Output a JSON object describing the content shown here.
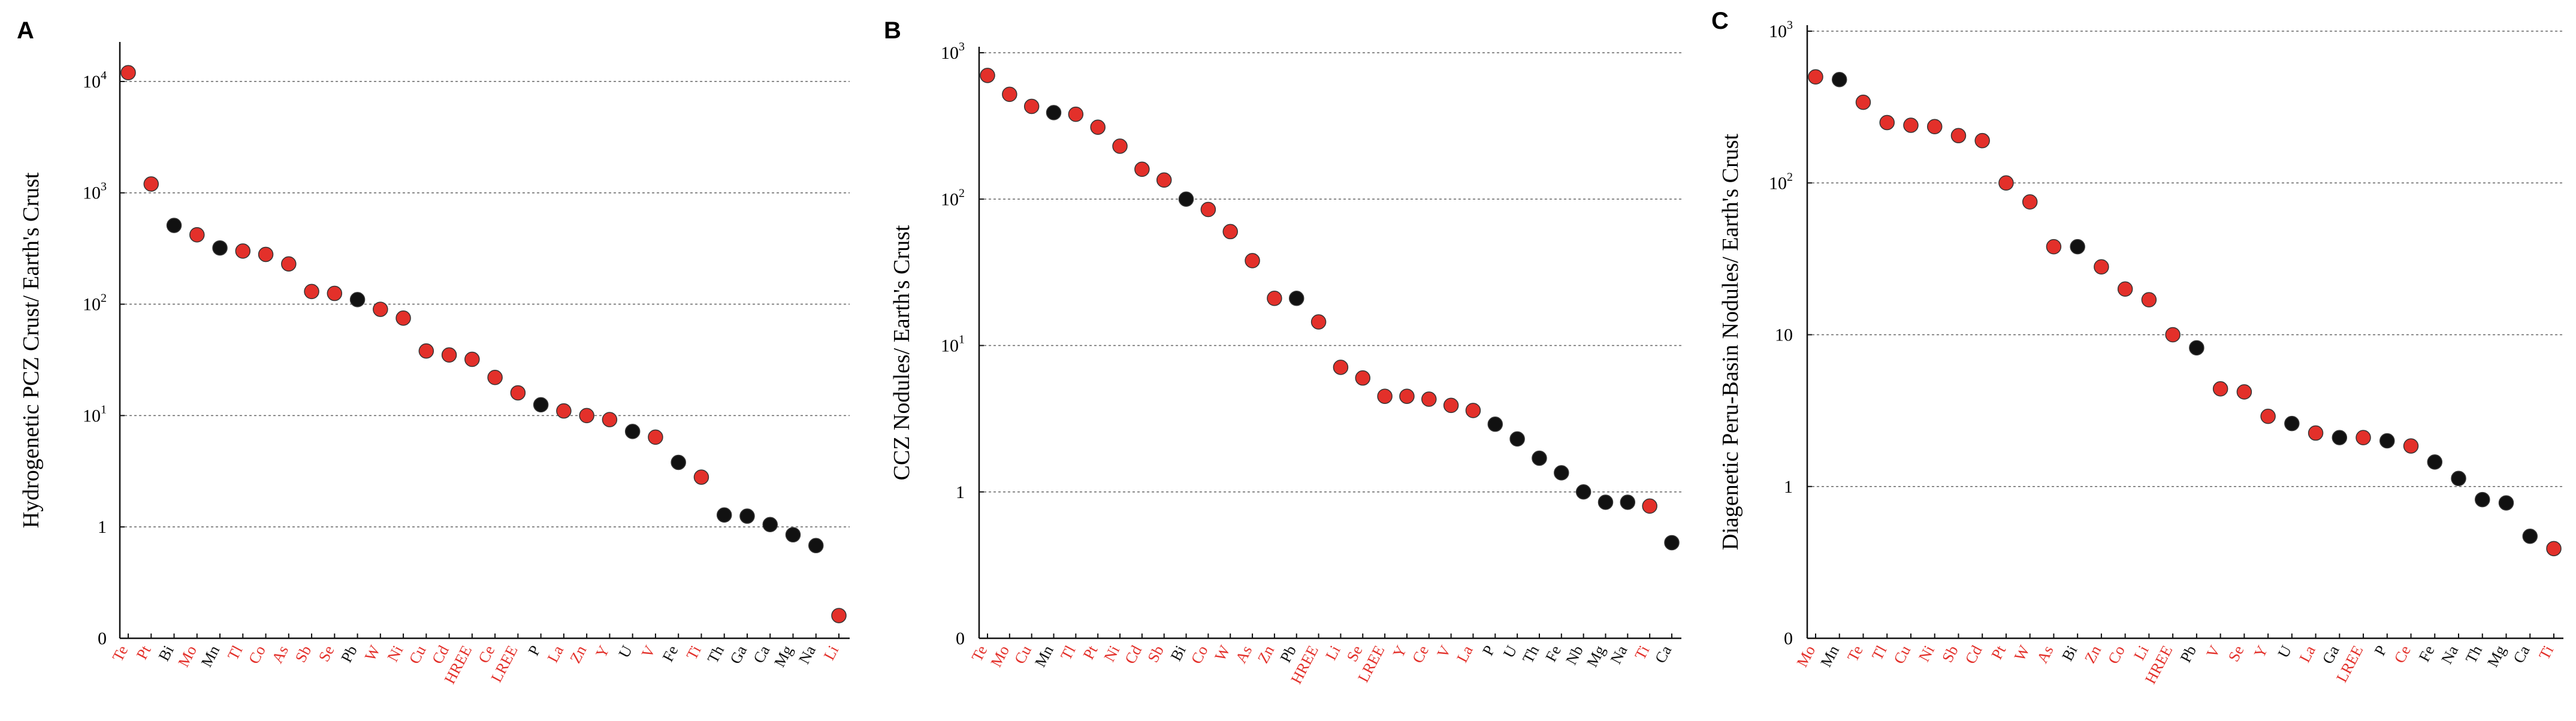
{
  "colors": {
    "red": "#e3302a",
    "black": "#111111",
    "grid": "#666666",
    "axis": "#111111"
  },
  "chart_data": [
    {
      "panel": "A",
      "type": "scatter",
      "yscale": "log",
      "ylabel": "Hydrogenetic PCZ Crust/ Earth's Crust",
      "y_ticks": [
        {
          "value": 0.1,
          "label": "0"
        },
        {
          "value": 1,
          "label": "1"
        },
        {
          "value": 10,
          "label": "10^1"
        },
        {
          "value": 100,
          "label": "10^2"
        },
        {
          "value": 1000,
          "label": "10^3"
        },
        {
          "value": 10000,
          "label": "10^4"
        }
      ],
      "ylim": [
        0.1,
        20000
      ],
      "grid": "horizontal-dashed",
      "categories": [
        "Te",
        "Pt",
        "Bi",
        "Mo",
        "Mn",
        "Tl",
        "Co",
        "As",
        "Sb",
        "Se",
        "Pb",
        "W",
        "Ni",
        "Cu",
        "Cd",
        "HREE",
        "Ce",
        "LREE",
        "P",
        "La",
        "Zn",
        "Y",
        "U",
        "V",
        "Fe",
        "Ti",
        "Th",
        "Ga",
        "Ca",
        "Mg",
        "Na",
        "Li"
      ],
      "values": [
        12000,
        1200,
        510,
        420,
        320,
        300,
        280,
        230,
        130,
        125,
        110,
        90,
        75,
        38,
        35,
        32,
        22,
        16,
        12.5,
        11,
        10,
        9.2,
        7.2,
        6.4,
        3.8,
        2.8,
        1.28,
        1.25,
        1.05,
        0.85,
        0.68,
        0.16
      ],
      "colors": [
        "red",
        "red",
        "black",
        "red",
        "black",
        "red",
        "red",
        "red",
        "red",
        "red",
        "black",
        "red",
        "red",
        "red",
        "red",
        "red",
        "red",
        "red",
        "black",
        "red",
        "red",
        "red",
        "black",
        "red",
        "black",
        "red",
        "black",
        "black",
        "black",
        "black",
        "black",
        "red"
      ]
    },
    {
      "panel": "B",
      "type": "scatter",
      "yscale": "log",
      "ylabel": "CCZ Nodules/ Earth's Crust",
      "y_ticks": [
        {
          "value": 0.1,
          "label": "0"
        },
        {
          "value": 1,
          "label": "1"
        },
        {
          "value": 10,
          "label": "10^1"
        },
        {
          "value": 100,
          "label": "10^2"
        },
        {
          "value": 1000,
          "label": "10^3"
        }
      ],
      "ylim": [
        0.1,
        1000
      ],
      "grid": "horizontal-dashed",
      "categories": [
        "Te",
        "Mo",
        "Cu",
        "Mn",
        "Tl",
        "Pt",
        "Ni",
        "Cd",
        "Sb",
        "Bi",
        "Co",
        "W",
        "As",
        "Zn",
        "Pb",
        "HREE",
        "Li",
        "Se",
        "LREE",
        "Y",
        "Ce",
        "V",
        "La",
        "P",
        "U",
        "Th",
        "Fe",
        "Nb",
        "Mg",
        "Na",
        "Ti",
        "Ca"
      ],
      "values": [
        700,
        520,
        430,
        390,
        380,
        310,
        230,
        160,
        135,
        100,
        85,
        60,
        38,
        21,
        21,
        14.5,
        7.1,
        6,
        4.5,
        4.5,
        4.3,
        3.9,
        3.6,
        2.9,
        2.3,
        1.7,
        1.35,
        1,
        0.85,
        0.85,
        0.8,
        0.45
      ],
      "colors": [
        "red",
        "red",
        "red",
        "black",
        "red",
        "red",
        "red",
        "red",
        "red",
        "black",
        "red",
        "red",
        "red",
        "red",
        "black",
        "red",
        "red",
        "red",
        "red",
        "red",
        "red",
        "red",
        "red",
        "black",
        "black",
        "black",
        "black",
        "black",
        "black",
        "black",
        "red",
        "black"
      ]
    },
    {
      "panel": "C",
      "type": "scatter",
      "yscale": "log",
      "ylabel": "Diagenetic Peru-Basin Nodules/ Earth's Crust",
      "y_ticks": [
        {
          "value": 0.1,
          "label": "0"
        },
        {
          "value": 1,
          "label": "1"
        },
        {
          "value": 10,
          "label": "10"
        },
        {
          "value": 100,
          "label": "10^2"
        },
        {
          "value": 1000,
          "label": "10^3"
        }
      ],
      "ylim": [
        0.1,
        1000
      ],
      "grid": "horizontal-dashed",
      "categories": [
        "Mo",
        "Mn",
        "Te",
        "Tl",
        "Cu",
        "Ni",
        "Sb",
        "Cd",
        "Pt",
        "W",
        "As",
        "Bi",
        "Zn",
        "Co",
        "Li",
        "HREE",
        "Pb",
        "V",
        "Se",
        "Y",
        "U",
        "La",
        "Ga",
        "LREE",
        "P",
        "Ce",
        "Fe",
        "Na",
        "Th",
        "Mg",
        "Ca",
        "Ti"
      ],
      "values": [
        500,
        480,
        340,
        250,
        240,
        235,
        205,
        190,
        100,
        75,
        38,
        38,
        28,
        20,
        17,
        10,
        8.2,
        4.4,
        4.2,
        2.9,
        2.6,
        2.25,
        2.1,
        2.1,
        2.0,
        1.85,
        1.45,
        1.13,
        0.82,
        0.78,
        0.47,
        0.39
      ],
      "colors": [
        "red",
        "black",
        "red",
        "red",
        "red",
        "red",
        "red",
        "red",
        "red",
        "red",
        "red",
        "black",
        "red",
        "red",
        "red",
        "red",
        "black",
        "red",
        "red",
        "red",
        "black",
        "red",
        "black",
        "red",
        "black",
        "red",
        "black",
        "black",
        "black",
        "black",
        "black",
        "red"
      ]
    }
  ]
}
